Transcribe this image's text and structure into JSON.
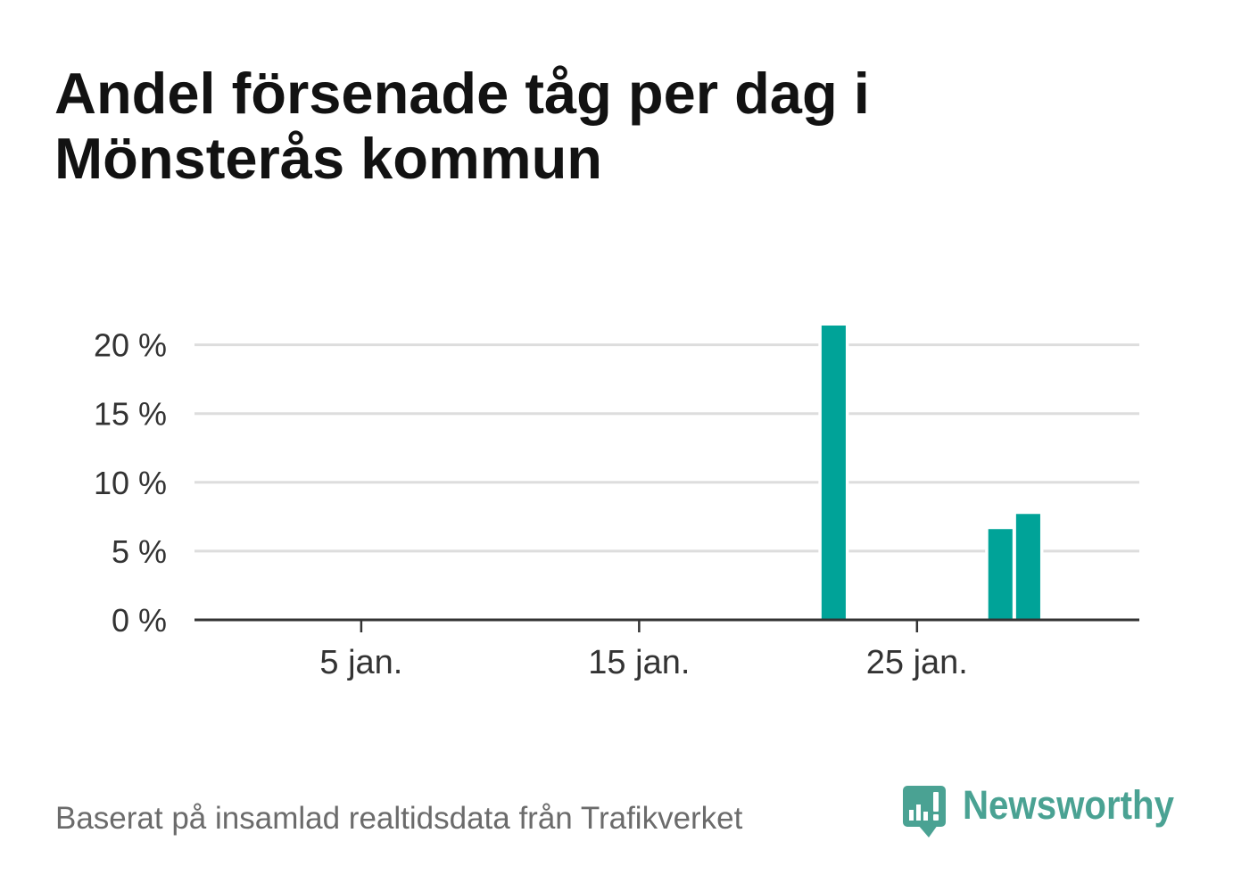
{
  "colors": {
    "bar": "#00a398",
    "grid": "#dddddd",
    "axis": "#333333",
    "logo": "#4aa293"
  },
  "chart_data": {
    "type": "bar",
    "title": "Andel försenade tåg per dag i Mönsterås kommun",
    "x": [
      "22 jan.",
      "28 jan.",
      "29 jan."
    ],
    "values": [
      21.4,
      6.6,
      7.7
    ],
    "xlim": [
      "30 dec.",
      "2 feb."
    ],
    "ylim": [
      0,
      21.4
    ],
    "x_ticks": [
      "5 jan.",
      "15 jan.",
      "25 jan."
    ],
    "y_ticks": [
      0,
      5,
      10,
      15,
      20
    ],
    "y_tick_labels": [
      "0 %",
      "5 %",
      "10 %",
      "15 %",
      "20 %"
    ],
    "grid": true
  },
  "footer": {
    "source": "Baserat på insamlad realtidsdata från Trafikverket"
  },
  "logo": {
    "text": "Newsworthy",
    "icon": "bar-chart-speech-bubble-icon"
  }
}
